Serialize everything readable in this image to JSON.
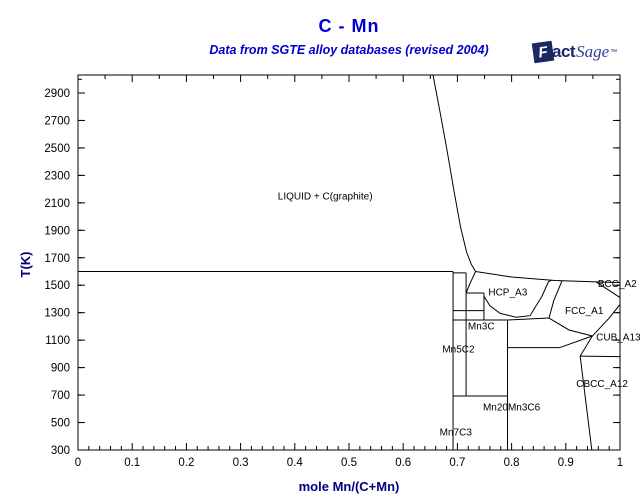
{
  "header": {
    "title": "C - Mn",
    "subtitle": "Data from SGTE alloy databases (revised 2004)"
  },
  "logo": {
    "f": "F",
    "act": "act",
    "sage": "Sage",
    "tm": "™"
  },
  "colors": {
    "title_blue": "#0000cc",
    "axis_title_navy": "#000080",
    "line_black": "#000000",
    "tick_label_black": "#000000",
    "logo_dark": "#1c2766",
    "logo_blue": "#2e3f96"
  },
  "chart_data": {
    "type": "line",
    "title": "C - Mn",
    "subtitle": "Data from SGTE alloy databases (revised 2004)",
    "xlabel": "mole Mn/(C+Mn)",
    "ylabel": "T(K)",
    "xlim": [
      0,
      1
    ],
    "ylim": [
      300,
      3031
    ],
    "grid": false,
    "x_major_ticks": [
      0,
      0.1,
      0.2,
      0.3,
      0.4,
      0.5,
      0.6,
      0.7,
      0.8,
      0.9,
      1
    ],
    "x_minor_step": 0.02,
    "x_top_step": 0.05,
    "y_major_ticks": [
      300,
      500,
      700,
      900,
      1100,
      1300,
      1500,
      1700,
      1900,
      2100,
      2300,
      2500,
      2700,
      2900
    ],
    "y_minor_step": 100,
    "boundaries": [
      {
        "name": "eutectic-1600K",
        "points": [
          [
            0,
            1600
          ],
          [
            0.692,
            1600
          ]
        ]
      },
      {
        "name": "mn5c2-top",
        "points": [
          [
            0.692,
            1590
          ],
          [
            0.716,
            1590
          ]
        ]
      },
      {
        "name": "liquidus-graphite",
        "points": [
          [
            0.655,
            3031
          ],
          [
            0.668,
            2760
          ],
          [
            0.681,
            2480
          ],
          [
            0.694,
            2180
          ],
          [
            0.706,
            1920
          ],
          [
            0.717,
            1740
          ],
          [
            0.726,
            1650
          ],
          [
            0.7335,
            1600
          ]
        ]
      },
      {
        "name": "liquidus-mn",
        "points": [
          [
            0.7335,
            1600
          ],
          [
            0.8,
            1560
          ],
          [
            0.88,
            1534
          ],
          [
            0.956,
            1524
          ],
          [
            1,
            1519
          ]
        ]
      },
      {
        "name": "mn7c3-line",
        "points": [
          [
            0.692,
            1600
          ],
          [
            0.692,
            300
          ]
        ]
      },
      {
        "name": "mn5c2-line",
        "points": [
          [
            0.716,
            1590
          ],
          [
            0.716,
            693
          ]
        ]
      },
      {
        "name": "mn3c-line",
        "points": [
          [
            0.749,
            1443
          ],
          [
            0.749,
            1247
          ]
        ]
      },
      {
        "name": "mn23c6-line",
        "points": [
          [
            0.7925,
            1247
          ],
          [
            0.7925,
            300
          ]
        ]
      },
      {
        "name": "hcp-left",
        "points": [
          [
            0.7335,
            1600
          ],
          [
            0.723,
            1510
          ],
          [
            0.716,
            1443
          ]
        ]
      },
      {
        "name": "h-1443",
        "points": [
          [
            0.716,
            1443
          ],
          [
            0.749,
            1443
          ]
        ]
      },
      {
        "name": "h-1315",
        "points": [
          [
            0.692,
            1315
          ],
          [
            0.749,
            1315
          ]
        ]
      },
      {
        "name": "h-1247",
        "points": [
          [
            0.692,
            1247
          ],
          [
            0.7925,
            1247
          ]
        ]
      },
      {
        "name": "h-693",
        "points": [
          [
            0.692,
            693
          ],
          [
            0.7925,
            693
          ]
        ]
      },
      {
        "name": "h-1046",
        "points": [
          [
            0.7925,
            1046
          ],
          [
            0.889,
            1046
          ]
        ]
      },
      {
        "name": "hcp-bottom",
        "points": [
          [
            0.749,
            1420
          ],
          [
            0.76,
            1350
          ],
          [
            0.779,
            1295
          ],
          [
            0.808,
            1267
          ],
          [
            0.834,
            1278
          ],
          [
            0.856,
            1420
          ],
          [
            0.868,
            1525
          ],
          [
            0.874,
            1538
          ]
        ]
      },
      {
        "name": "fcc-left",
        "points": [
          [
            0.893,
            1532
          ],
          [
            0.878,
            1390
          ],
          [
            0.869,
            1261
          ]
        ]
      },
      {
        "name": "fcc-mn23c6-top",
        "points": [
          [
            0.869,
            1261
          ],
          [
            0.7925,
            1247
          ]
        ]
      },
      {
        "name": "fcc-bottom",
        "points": [
          [
            0.869,
            1261
          ],
          [
            0.906,
            1174
          ],
          [
            0.949,
            1130
          ]
        ]
      },
      {
        "name": "cub-sliver",
        "points": [
          [
            0.889,
            1046
          ],
          [
            0.949,
            1130
          ]
        ]
      },
      {
        "name": "fcc-cub-boundary",
        "points": [
          [
            0.949,
            1130
          ],
          [
            0.98,
            1261
          ],
          [
            1,
            1360
          ]
        ]
      },
      {
        "name": "cub-bottom-left",
        "points": [
          [
            0.949,
            1130
          ],
          [
            0.9265,
            984
          ]
        ]
      },
      {
        "name": "cub-cbcc-boundary",
        "points": [
          [
            0.9265,
            984
          ],
          [
            1,
            980
          ]
        ]
      },
      {
        "name": "cbcc-left-slant",
        "points": [
          [
            0.9265,
            984
          ],
          [
            0.948,
            300
          ]
        ]
      },
      {
        "name": "bcc-fcc-boundary",
        "points": [
          [
            0.956,
            1524
          ],
          [
            0.984,
            1452
          ],
          [
            1,
            1410
          ]
        ]
      }
    ],
    "region_labels": [
      {
        "text": "LIQUID + C(graphite)",
        "x": 0.456,
        "y": 2150
      },
      {
        "text": "HCP_A3",
        "x": 0.793,
        "y": 1450
      },
      {
        "text": "FCC_A1",
        "x": 0.934,
        "y": 1316
      },
      {
        "text": "BCC_A2",
        "x": 0.995,
        "y": 1513
      },
      {
        "text": "CUB_A13",
        "x": 0.997,
        "y": 1123
      },
      {
        "text": "CBCC_A12",
        "x": 0.967,
        "y": 784
      },
      {
        "text": "Mn3C",
        "x": 0.744,
        "y": 1203
      },
      {
        "text": "Mn5C2",
        "x": 0.702,
        "y": 1036
      },
      {
        "text": "Mn20Mn3C6",
        "x": 0.8,
        "y": 613
      },
      {
        "text": "Mn7C3",
        "x": 0.697,
        "y": 431
      }
    ]
  }
}
